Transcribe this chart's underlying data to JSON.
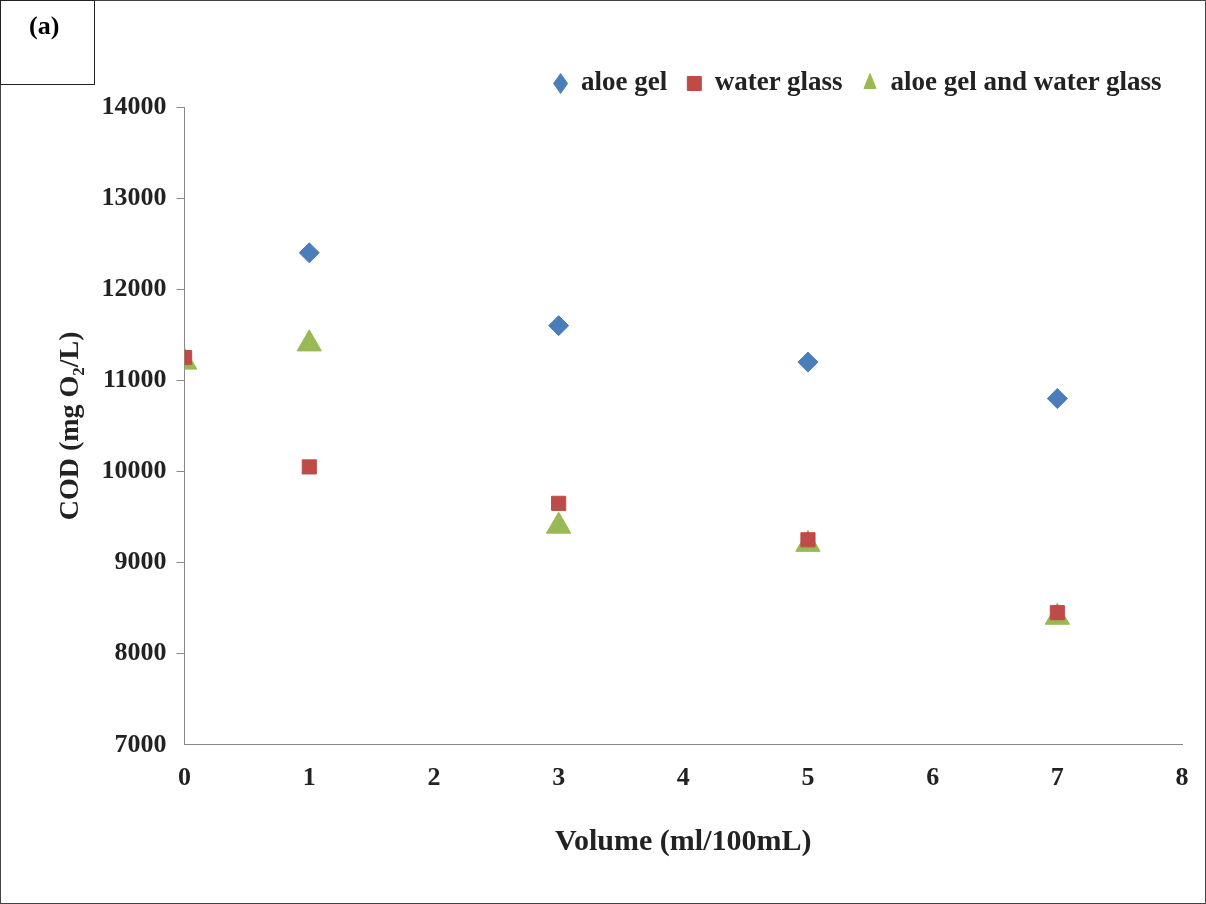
{
  "chart_data": {
    "type": "scatter",
    "xlabel": "Volume (ml/100mL)",
    "ylabel": "COD (mg O₂/L)",
    "annotations": [
      "(a)"
    ],
    "x": [
      0,
      1,
      3,
      5,
      7
    ],
    "series": [
      {
        "name": "aloe gel",
        "color": "#4a7ebb",
        "marker": "diamond",
        "values": [
          null,
          12400,
          11600,
          11200,
          10800
        ]
      },
      {
        "name": "water glass",
        "color": "#be4b48",
        "marker": "square",
        "values": [
          11250,
          10050,
          9650,
          9250,
          8450
        ]
      },
      {
        "name": "aloe gel and water glass",
        "color": "#98b954",
        "marker": "triangle",
        "values": [
          11200,
          11400,
          9400,
          9200,
          8400
        ]
      }
    ],
    "xlim": [
      0,
      8
    ],
    "xticks": [
      0,
      1,
      2,
      3,
      4,
      5,
      6,
      7,
      8
    ],
    "ylim": [
      7000,
      14000
    ],
    "yticks": [
      7000,
      8000,
      9000,
      10000,
      11000,
      12000,
      13000,
      14000
    ],
    "grid": false,
    "legend": "top"
  }
}
